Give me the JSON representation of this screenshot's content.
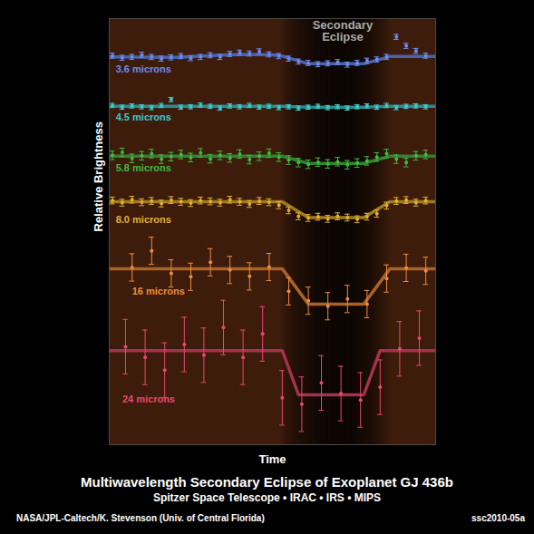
{
  "chart_data": {
    "type": "line",
    "title": "Multiwavelength Secondary Eclipse of Exoplanet GJ 436b",
    "subtitle": "Spitzer Space Telescope • IRAC • IRS • MIPS",
    "credit": "NASA/JPL-Caltech/K. Stevenson (Univ. of Central Florida)",
    "image_id": "ssc2010-05a",
    "x_label": "Time",
    "y_label": "Relative Brightness",
    "xlim": [
      0,
      100
    ],
    "ylim": [
      0,
      100
    ],
    "tick_labels": false,
    "annotations": [
      {
        "text": "Secondary Eclipse",
        "x_start": 53,
        "x_end": 86
      }
    ],
    "series": [
      {
        "name": "3.6 microns",
        "color": "#6b8cf0",
        "x": [
          1,
          4,
          7,
          10,
          13,
          16,
          19,
          22,
          25,
          28,
          31,
          34,
          37,
          40,
          43,
          46,
          49,
          52,
          55,
          58,
          61,
          64,
          67,
          70,
          73,
          76,
          79,
          82,
          85,
          88,
          91,
          94,
          97
        ],
        "values": [
          91.3,
          90.8,
          91.0,
          91.5,
          91.0,
          90.6,
          90.9,
          91.2,
          90.7,
          91.0,
          91.4,
          91.0,
          91.7,
          92.0,
          91.8,
          92.3,
          91.6,
          91.2,
          90.6,
          89.9,
          89.6,
          89.3,
          89.5,
          89.8,
          89.2,
          89.6,
          90.1,
          90.4,
          91.0,
          95.7,
          93.6,
          92.4,
          91.3
        ],
        "errors": [
          0.6,
          0.6,
          0.6,
          0.6,
          0.6,
          0.6,
          0.6,
          0.6,
          0.6,
          0.6,
          0.6,
          0.6,
          0.6,
          0.6,
          0.6,
          0.6,
          0.6,
          0.6,
          0.6,
          0.6,
          0.6,
          0.6,
          0.6,
          0.6,
          0.6,
          0.6,
          0.6,
          0.6,
          0.6,
          0.6,
          0.6,
          0.6,
          0.6
        ],
        "model": {
          "x": [
            0,
            20,
            40,
            50,
            53,
            61,
            78,
            86,
            100
          ],
          "values": [
            91.0,
            90.9,
            91.6,
            91.5,
            91.2,
            89.4,
            89.4,
            91.1,
            91.1
          ]
        }
      },
      {
        "name": "4.5 microns",
        "color": "#40c8c8",
        "x": [
          1,
          4,
          7,
          10,
          13,
          16,
          19,
          22,
          25,
          28,
          31,
          34,
          37,
          40,
          43,
          46,
          49,
          52,
          55,
          58,
          61,
          64,
          67,
          70,
          73,
          76,
          79,
          82,
          85,
          88,
          91,
          94,
          97
        ],
        "values": [
          79.6,
          79.2,
          79.5,
          79.3,
          79.1,
          79.6,
          81.0,
          79.2,
          79.3,
          79.7,
          79.4,
          79.0,
          79.5,
          79.3,
          79.6,
          79.2,
          79.4,
          79.1,
          79.3,
          79.0,
          79.2,
          79.4,
          79.1,
          79.3,
          79.0,
          79.3,
          79.5,
          79.2,
          79.6,
          79.1,
          79.4,
          79.5,
          79.3
        ],
        "errors": [
          0.5,
          0.5,
          0.5,
          0.5,
          0.5,
          0.5,
          0.5,
          0.5,
          0.5,
          0.5,
          0.5,
          0.5,
          0.5,
          0.5,
          0.5,
          0.5,
          0.5,
          0.5,
          0.5,
          0.5,
          0.5,
          0.5,
          0.5,
          0.5,
          0.5,
          0.5,
          0.5,
          0.5,
          0.5,
          0.5,
          0.5,
          0.5,
          0.5
        ],
        "model": {
          "x": [
            0,
            53,
            61,
            78,
            86,
            100
          ],
          "values": [
            79.4,
            79.4,
            79.2,
            79.2,
            79.4,
            79.4
          ]
        }
      },
      {
        "name": "5.8 microns",
        "color": "#44b844",
        "x": [
          1,
          4,
          7,
          10,
          13,
          16,
          19,
          22,
          25,
          28,
          31,
          34,
          37,
          40,
          43,
          46,
          49,
          52,
          55,
          58,
          61,
          64,
          67,
          70,
          73,
          76,
          79,
          82,
          85,
          88,
          91,
          94,
          97
        ],
        "values": [
          67.9,
          68.6,
          67.2,
          67.8,
          68.3,
          67.0,
          67.6,
          68.1,
          67.4,
          68.5,
          67.1,
          67.9,
          67.3,
          68.2,
          66.9,
          67.7,
          68.4,
          67.5,
          66.8,
          66.2,
          65.8,
          66.3,
          65.9,
          66.4,
          65.7,
          66.1,
          66.6,
          67.5,
          68.3,
          67.0,
          66.2,
          67.8,
          68.1
        ],
        "errors": [
          1.0,
          1.0,
          1.0,
          1.0,
          1.0,
          1.0,
          1.0,
          1.0,
          1.0,
          1.0,
          1.0,
          1.0,
          1.0,
          1.0,
          1.0,
          1.0,
          1.0,
          1.0,
          1.0,
          1.0,
          1.0,
          1.0,
          1.0,
          1.0,
          1.0,
          1.0,
          1.0,
          1.0,
          1.0,
          1.0,
          1.0,
          1.0,
          1.0
        ],
        "model": {
          "x": [
            0,
            53,
            61,
            78,
            86,
            100
          ],
          "values": [
            67.7,
            67.7,
            66.0,
            66.0,
            67.7,
            67.7
          ]
        }
      },
      {
        "name": "8.0 microns",
        "color": "#e0b030",
        "x": [
          1,
          4,
          7,
          10,
          13,
          16,
          19,
          22,
          25,
          28,
          31,
          34,
          37,
          40,
          43,
          46,
          49,
          52,
          55,
          58,
          61,
          64,
          67,
          70,
          73,
          76,
          79,
          82,
          85,
          88,
          91,
          94,
          97
        ],
        "values": [
          57.3,
          56.8,
          57.5,
          56.9,
          57.2,
          56.6,
          57.4,
          57.0,
          56.7,
          57.3,
          57.1,
          56.8,
          57.5,
          57.0,
          56.5,
          57.2,
          56.9,
          56.2,
          55.0,
          53.6,
          53.2,
          53.5,
          53.0,
          53.6,
          53.3,
          52.9,
          53.5,
          54.2,
          56.1,
          57.2,
          57.4,
          56.8,
          57.3
        ],
        "errors": [
          0.8,
          0.8,
          0.8,
          0.8,
          0.8,
          0.8,
          0.8,
          0.8,
          0.8,
          0.8,
          0.8,
          0.8,
          0.8,
          0.8,
          0.8,
          0.8,
          0.8,
          0.8,
          0.8,
          0.8,
          0.8,
          0.8,
          0.8,
          0.8,
          0.8,
          0.8,
          0.8,
          0.8,
          0.8,
          0.8,
          0.8,
          0.8,
          0.8
        ],
        "model": {
          "x": [
            0,
            53,
            61,
            78,
            86,
            100
          ],
          "values": [
            57.0,
            57.0,
            53.3,
            53.3,
            57.0,
            57.0
          ]
        }
      },
      {
        "name": "16 microns",
        "color": "#f08c3c",
        "x": [
          7,
          13,
          19,
          25,
          31,
          37,
          43,
          49,
          55,
          61,
          67,
          73,
          79,
          85,
          91,
          97
        ],
        "values": [
          41.6,
          45.5,
          40.2,
          39.4,
          42.8,
          41.0,
          39.5,
          41.7,
          36.0,
          33.8,
          32.5,
          34.2,
          33.0,
          39.0,
          41.5,
          40.8
        ],
        "errors": [
          3.2,
          3.2,
          3.2,
          3.2,
          3.2,
          3.2,
          3.2,
          3.2,
          3.2,
          3.2,
          3.2,
          3.2,
          3.2,
          3.2,
          3.2,
          3.2
        ],
        "model": {
          "x": [
            0,
            53,
            61,
            78,
            86,
            100
          ],
          "values": [
            41.3,
            41.3,
            33.0,
            33.0,
            41.3,
            41.3
          ]
        }
      },
      {
        "name": "24 microns",
        "color": "#e8486e",
        "x": [
          5,
          11,
          17,
          23,
          29,
          35,
          41,
          47,
          53,
          59,
          65,
          71,
          77,
          83,
          89,
          95
        ],
        "values": [
          23.0,
          20.5,
          17.5,
          23.5,
          21.0,
          27.5,
          20.5,
          26.0,
          11.0,
          9.5,
          14.5,
          12.0,
          10.5,
          13.5,
          22.5,
          25.0
        ],
        "errors": [
          6.4,
          6.4,
          6.4,
          6.4,
          6.4,
          6.4,
          6.4,
          6.4,
          6.4,
          6.4,
          6.4,
          6.4,
          6.4,
          6.4,
          6.4,
          6.4
        ],
        "model": {
          "x": [
            0,
            53,
            58,
            78,
            83,
            100
          ],
          "values": [
            22.1,
            22.1,
            11.7,
            11.7,
            22.1,
            22.1
          ]
        }
      }
    ]
  }
}
